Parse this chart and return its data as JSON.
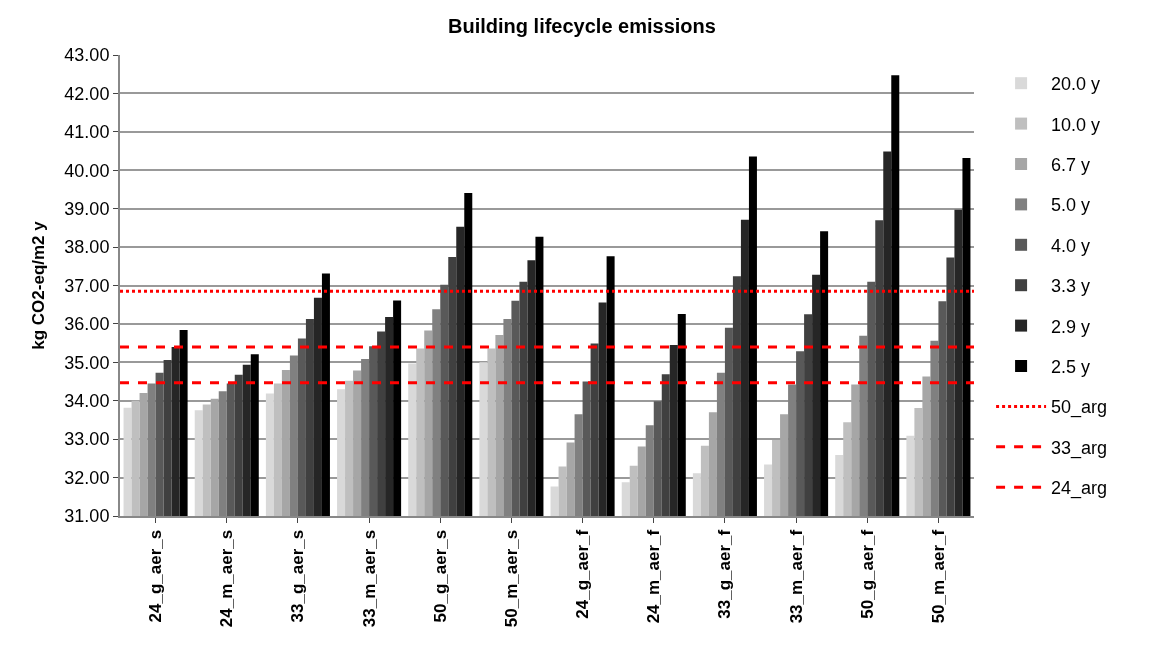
{
  "chart_data": {
    "type": "bar",
    "title": "Building lifecycle emissions",
    "ylabel": "kg CO2-eq/m2 y",
    "categories": [
      "24_g_aer_s",
      "24_m_aer_s",
      "33_g_aer_s",
      "33_m_aer_s",
      "50_g_aer_s",
      "50_m_aer_s",
      "24_g_aer_f",
      "24_m_aer_f",
      "33_g_aer_f",
      "33_m_aer_f",
      "50_g_aer_f",
      "50_m_aer_f"
    ],
    "series": [
      {
        "name": "20.0 y",
        "color": "#d9d9d9",
        "values": [
          33.82,
          33.75,
          34.19,
          34.3,
          34.97,
          35.0,
          31.77,
          31.88,
          32.11,
          32.34,
          32.59,
          33.09
        ]
      },
      {
        "name": "10.0 y",
        "color": "#bfbfbf",
        "values": [
          34.0,
          33.9,
          34.45,
          34.52,
          35.36,
          35.36,
          32.29,
          32.31,
          32.83,
          32.98,
          33.44,
          33.81
        ]
      },
      {
        "name": "6.7 y",
        "color": "#a6a6a6",
        "values": [
          34.2,
          34.05,
          34.8,
          34.79,
          35.83,
          35.71,
          32.91,
          32.81,
          33.7,
          33.65,
          34.42,
          34.63
        ]
      },
      {
        "name": "5.0 y",
        "color": "#808080",
        "values": [
          34.45,
          34.25,
          35.18,
          35.09,
          36.38,
          36.13,
          33.65,
          33.36,
          34.73,
          34.42,
          35.69,
          35.56
        ]
      },
      {
        "name": "4.0 y",
        "color": "#595959",
        "values": [
          34.73,
          34.45,
          35.62,
          35.42,
          37.02,
          36.6,
          34.5,
          33.99,
          35.9,
          35.29,
          37.1,
          36.59
        ]
      },
      {
        "name": "3.3 y",
        "color": "#404040",
        "values": [
          35.06,
          34.68,
          36.13,
          35.8,
          37.74,
          37.1,
          35.49,
          34.69,
          37.24,
          36.25,
          38.7,
          37.73
        ]
      },
      {
        "name": "2.9 y",
        "color": "#262626",
        "values": [
          35.4,
          34.94,
          36.68,
          36.18,
          38.53,
          37.66,
          36.56,
          35.45,
          38.71,
          37.28,
          40.49,
          38.97
        ]
      },
      {
        "name": "2.5 y",
        "color": "#000000",
        "values": [
          35.84,
          35.21,
          37.31,
          36.61,
          39.41,
          38.27,
          37.76,
          36.26,
          40.36,
          38.41,
          42.47,
          40.32
        ]
      }
    ],
    "ref_lines": [
      {
        "axis": "y",
        "value": 36.85,
        "label": "50_arg",
        "color": "#ff0000",
        "line_style": "dotted"
      },
      {
        "axis": "y",
        "value": 35.4,
        "label": "33_arg",
        "color": "#ff0000",
        "line_style": "dashed"
      },
      {
        "axis": "y",
        "value": 34.47,
        "label": "24_arg",
        "color": "#ff0000",
        "line_style": "dashed"
      }
    ],
    "ylim": [
      31,
      43
    ],
    "yticks": [
      {
        "value": 31,
        "label": "31.00"
      },
      {
        "value": 32,
        "label": "32.00"
      },
      {
        "value": 33,
        "label": "33.00"
      },
      {
        "value": 34,
        "label": "34.00"
      },
      {
        "value": 35,
        "label": "35.00"
      },
      {
        "value": 36,
        "label": "36.00"
      },
      {
        "value": 37,
        "label": "37.00"
      },
      {
        "value": 38,
        "label": "38.00"
      },
      {
        "value": 39,
        "label": "39.00"
      },
      {
        "value": 40,
        "label": "40.00"
      },
      {
        "value": 41,
        "label": "41.00"
      },
      {
        "value": 42,
        "label": "42.00"
      },
      {
        "value": 43,
        "label": "43.00"
      }
    ],
    "grid": "y",
    "legend": "right"
  }
}
